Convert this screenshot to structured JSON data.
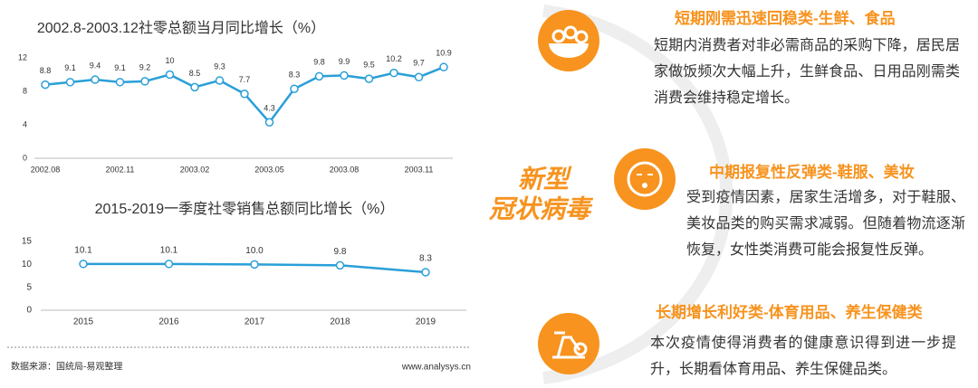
{
  "chart_data": [
    {
      "type": "line",
      "title": "2002.8-2003.12社零总额当月同比增长（%）",
      "categories": [
        "2002.08",
        null,
        null,
        "2002.11",
        null,
        null,
        "2003.02",
        null,
        null,
        "2003.05",
        null,
        null,
        "2003.08",
        null,
        null,
        "2003.11",
        null
      ],
      "values": [
        8.8,
        9.1,
        9.4,
        9.1,
        9.2,
        10,
        8.5,
        9.3,
        7.7,
        4.3,
        8.3,
        9.8,
        9.9,
        9.5,
        10.2,
        9.7,
        10.9
      ],
      "color": "#2a9fd8",
      "ylim": [
        0,
        12
      ],
      "yticks": [
        0,
        4,
        8,
        12
      ]
    },
    {
      "type": "line",
      "title": "2015-2019一季度社零销售总额同比增长（%）",
      "categories": [
        "2015",
        "2016",
        "2017",
        "2018",
        "2019"
      ],
      "values": [
        10.1,
        10.1,
        10.0,
        9.8,
        8.3
      ],
      "value_labels": [
        "10.1",
        "10.1",
        "10.0",
        "9.8",
        "8.3"
      ],
      "color": "#2a9fd8",
      "ylim": [
        0,
        15
      ],
      "yticks": [
        0,
        5,
        10,
        15
      ]
    }
  ],
  "footer": {
    "source": "数据来源：国统局-易观整理",
    "site": "www.analysys.cn"
  },
  "logo": {
    "line1": "新型",
    "line2": "冠状病毒"
  },
  "items": [
    {
      "title": "短期刚需迅速回稳类-生鲜、食品",
      "body": "短期内消费者对非必需商品的采购下降，居民居家做饭频次大幅上升，生鲜食品、日用品刚需类消费会维持稳定增长。"
    },
    {
      "title": "中期报复性反弹类-鞋服、美妆",
      "body": "受到疫情因素，居家生活增多，对于鞋服、美妆品类的购买需求减弱。但随着物流逐渐恢复，女性类消费可能会报复性反弹。"
    },
    {
      "title": "长期增长利好类-体育用品、养生保健类",
      "body": "本次疫情使得消费者的健康意识得到进一步提升，长期看体育用品、养生保健品类。"
    }
  ]
}
